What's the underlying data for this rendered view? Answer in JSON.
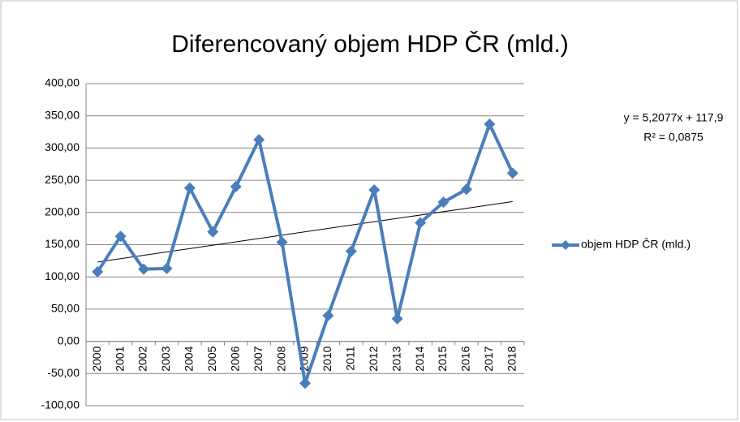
{
  "chart_data": {
    "type": "line",
    "title": "Diferencovaný objem HDP ČR (mld.)",
    "categories": [
      "2000",
      "2001",
      "2002",
      "2003",
      "2004",
      "2005",
      "2006",
      "2007",
      "2008",
      "2009",
      "2010",
      "2011",
      "2012",
      "2013",
      "2014",
      "2015",
      "2016",
      "2017",
      "2018"
    ],
    "series": [
      {
        "name": "objem HDP ČR (mld.)",
        "color": "#4a7ebb",
        "values": [
          108,
          163,
          112,
          113,
          238,
          170,
          240,
          313,
          154,
          -65,
          40,
          140,
          235,
          35,
          184,
          216,
          236,
          337,
          261
        ]
      }
    ],
    "ylim": [
      -100,
      400
    ],
    "yticks": [
      {
        "value": -100,
        "label": "-100,00"
      },
      {
        "value": -50,
        "label": "-50,00"
      },
      {
        "value": 0,
        "label": "0,00"
      },
      {
        "value": 50,
        "label": "50,00"
      },
      {
        "value": 100,
        "label": "100,00"
      },
      {
        "value": 150,
        "label": "150,00"
      },
      {
        "value": 200,
        "label": "200,00"
      },
      {
        "value": 250,
        "label": "250,00"
      },
      {
        "value": 300,
        "label": "300,00"
      },
      {
        "value": 350,
        "label": "350,00"
      },
      {
        "value": 400,
        "label": "400,00"
      }
    ],
    "grid": true,
    "legend": "right",
    "trendline": {
      "equation": "y = 5,2077x + 117,9",
      "r2": "R² = 0,0875",
      "slope": 5.2077,
      "intercept": 117.9
    }
  }
}
